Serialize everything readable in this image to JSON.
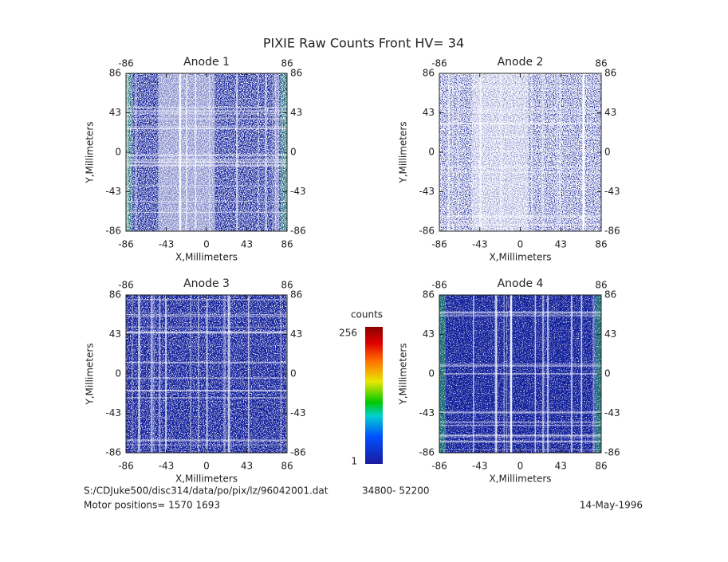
{
  "title": "PIXIE Raw Counts Front HV= 34",
  "chart_data": [
    {
      "type": "image",
      "title": "Anode 1",
      "xlabel": "X,Millimeters",
      "ylabel": "Y,Millimeters",
      "xlim": [
        -86,
        86
      ],
      "ylim": [
        -86,
        86
      ],
      "xticks": [
        -86,
        -43,
        0,
        43,
        86
      ],
      "yticks": [
        -86,
        -43,
        0,
        43,
        86
      ]
    },
    {
      "type": "image",
      "title": "Anode 2",
      "xlabel": "X,Millimeters",
      "ylabel": "Y,Millimeters",
      "xlim": [
        -86,
        86
      ],
      "ylim": [
        -86,
        86
      ],
      "xticks": [
        -86,
        -43,
        0,
        43,
        86
      ],
      "yticks": [
        -86,
        -43,
        0,
        43,
        86
      ]
    },
    {
      "type": "image",
      "title": "Anode 3",
      "xlabel": "X,Millimeters",
      "ylabel": "Y,Millimeters",
      "xlim": [
        -86,
        86
      ],
      "ylim": [
        -86,
        86
      ],
      "xticks": [
        -86,
        -43,
        0,
        43,
        86
      ],
      "yticks": [
        -86,
        -43,
        0,
        43,
        86
      ]
    },
    {
      "type": "image",
      "title": "Anode 4",
      "xlabel": "X,Millimeters",
      "ylabel": "Y,Millimeters",
      "xlim": [
        -86,
        86
      ],
      "ylim": [
        -86,
        86
      ],
      "xticks": [
        -86,
        -43,
        0,
        43,
        86
      ],
      "yticks": [
        -86,
        -43,
        0,
        43,
        86
      ]
    }
  ],
  "colorbar": {
    "label": "counts",
    "lim": [
      1,
      256
    ],
    "ticks": [
      1,
      256
    ]
  },
  "footer": {
    "file": "S:/CDJuke500/disc314/data/po/pix/lz/96042001.dat",
    "range": "34800- 52200",
    "motor": "Motor positions= 1570 1693",
    "date": "14-May-1996"
  }
}
